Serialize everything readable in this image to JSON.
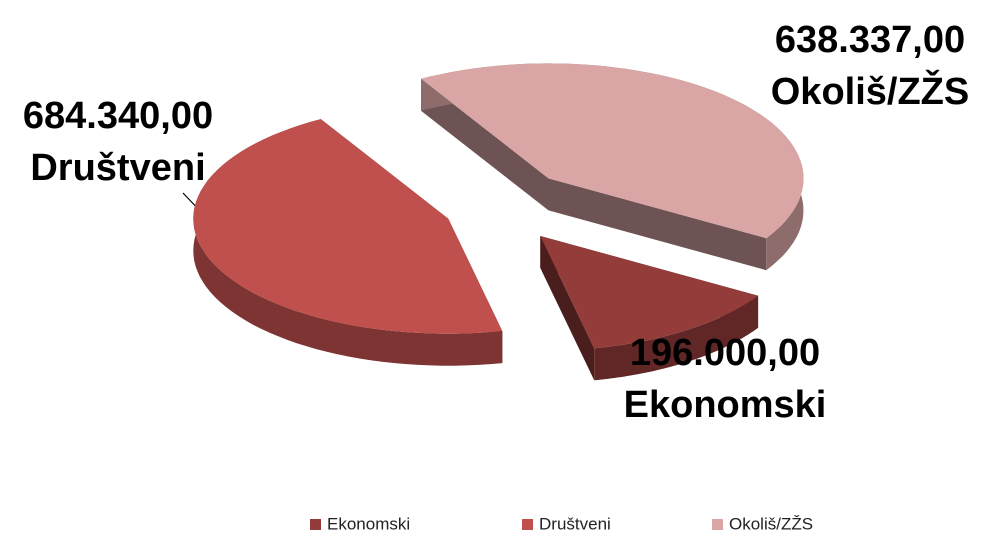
{
  "chart_data": {
    "type": "pie",
    "categories": [
      "Ekonomski",
      "Društveni",
      "Okoliš/ZŽS"
    ],
    "values": [
      196000,
      684340,
      638337
    ],
    "value_labels": [
      "196.000,00",
      "684.340,00",
      "638.337,00"
    ],
    "colors": [
      "#943c3a",
      "#c0504d",
      "#d9a6a5"
    ],
    "legend": "bottom"
  }
}
